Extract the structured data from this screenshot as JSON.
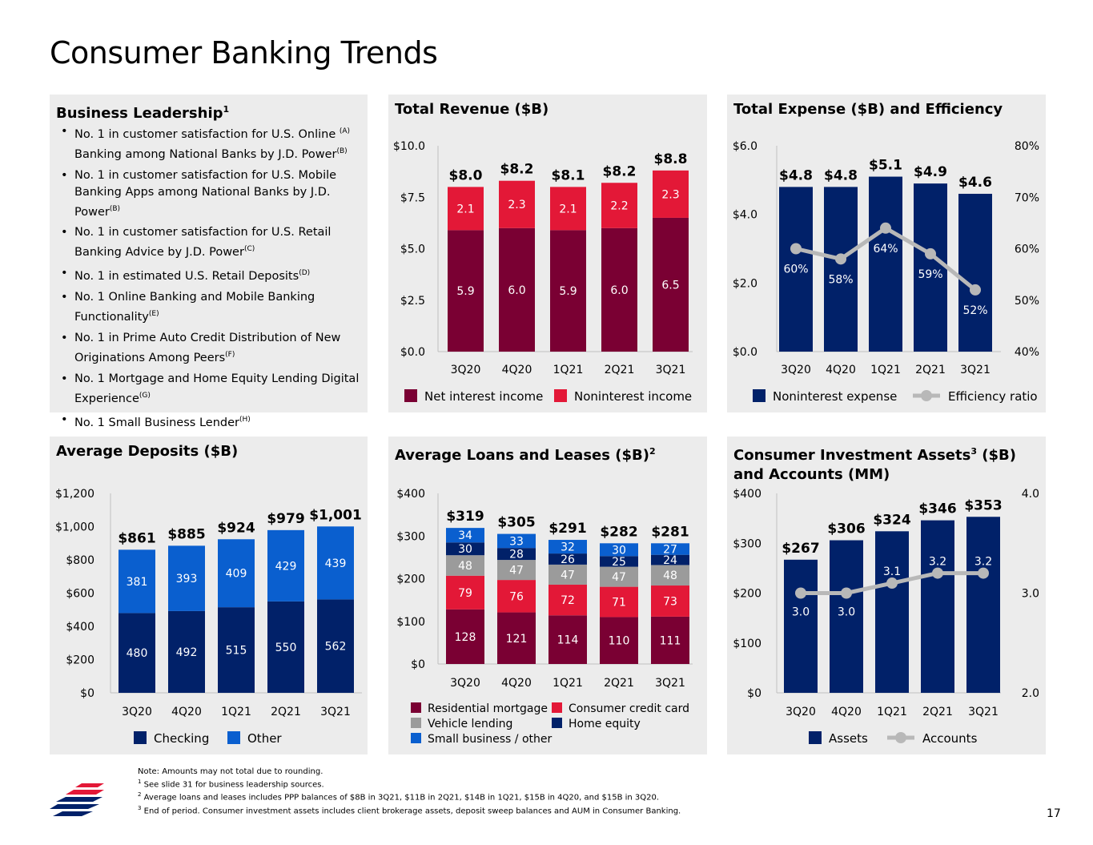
{
  "page": {
    "title": "Consumer Banking Trends",
    "page_number": "17",
    "colors": {
      "maroon": "#7a0033",
      "red": "#e31837",
      "navy": "#012169",
      "blue": "#0a5fcf",
      "gray": "#9b9b9b",
      "line_gray": "#b8b8b8",
      "panel_bg": "#ececec"
    }
  },
  "leadership": {
    "title": "Business Leadership",
    "title_sup": "1",
    "items": [
      {
        "text": "No. 1 in customer satisfaction for U.S. Online ",
        "sup1": "(A)",
        "text2": "Banking among National Banks by J.D. Power",
        "sup2": "(B)"
      },
      {
        "text": "No. 1 in customer satisfaction for U.S. Mobile Banking Apps among National Banks by J.D. Power",
        "sup1": "(B)",
        "text2": "",
        "sup2": ""
      },
      {
        "text": "No. 1 in customer satisfaction for U.S. Retail Banking Advice by J.D. Power",
        "sup1": "(C)",
        "text2": "",
        "sup2": ""
      },
      {
        "text": "No. 1 in estimated U.S. Retail Deposits",
        "sup1": "(D)",
        "text2": "",
        "sup2": ""
      },
      {
        "text": "No. 1 Online Banking and Mobile Banking Functionality",
        "sup1": "(E)",
        "text2": "",
        "sup2": ""
      },
      {
        "text": "No. 1 in Prime Auto Credit Distribution of New Originations Among Peers",
        "sup1": "(F)",
        "text2": "",
        "sup2": ""
      },
      {
        "text": "No. 1 Mortgage and Home Equity Lending Digital Experience",
        "sup1": "(G)",
        "text2": "",
        "sup2": ""
      },
      {
        "text": "No. 1 Small Business Lender",
        "sup1": "(H)",
        "text2": "",
        "sup2": ""
      }
    ]
  },
  "chart_data": [
    {
      "id": "revenue",
      "type": "bar",
      "stacked": true,
      "title": "Total Revenue ($B)",
      "title_sup": "",
      "title2": "",
      "categories": [
        "3Q20",
        "4Q20",
        "1Q21",
        "2Q21",
        "3Q21"
      ],
      "series": [
        {
          "name": "Net interest income",
          "color": "#7a0033",
          "values": [
            5.9,
            6.0,
            5.9,
            6.0,
            6.5
          ],
          "labels": [
            "5.9",
            "6.0",
            "5.9",
            "6.0",
            "6.5"
          ]
        },
        {
          "name": "Noninterest income",
          "color": "#e31837",
          "values": [
            2.1,
            2.3,
            2.1,
            2.2,
            2.3
          ],
          "labels": [
            "2.1",
            "2.3",
            "2.1",
            "2.2",
            "2.3"
          ]
        }
      ],
      "totals": [
        "$8.0",
        "$8.2",
        "$8.1",
        "$8.2",
        "$8.8"
      ],
      "ylim": [
        0,
        10
      ],
      "yticks": [
        "$0.0",
        "$2.5",
        "$5.0",
        "$7.5",
        "$10.0"
      ],
      "grid": false,
      "legend_position": "bottom"
    },
    {
      "id": "expense",
      "type": "bar",
      "stacked": false,
      "title": "Total Expense ($B) and Efficiency",
      "title_sup": "",
      "title2": "",
      "categories": [
        "3Q20",
        "4Q20",
        "1Q21",
        "2Q21",
        "3Q21"
      ],
      "series": [
        {
          "name": "Noninterest expense",
          "color": "#012169",
          "values": [
            4.8,
            4.8,
            5.1,
            4.9,
            4.6
          ],
          "labels": [
            "$4.8",
            "$4.8",
            "$5.1",
            "$4.9",
            "$4.6"
          ]
        }
      ],
      "line": {
        "name": "Efficiency ratio",
        "color": "#b8b8b8",
        "values": [
          60,
          58,
          64,
          59,
          52
        ],
        "labels": [
          "60%",
          "58%",
          "64%",
          "59%",
          "52%"
        ],
        "axis": "right"
      },
      "ylim": [
        0,
        6
      ],
      "yticks": [
        "$0.0",
        "$2.0",
        "$4.0",
        "$6.0"
      ],
      "y2lim": [
        40,
        80
      ],
      "y2ticks": [
        "40%",
        "50%",
        "60%",
        "70%",
        "80%"
      ],
      "grid": false,
      "legend_position": "bottom"
    },
    {
      "id": "deposits",
      "type": "bar",
      "stacked": true,
      "title": "Average Deposits ($B)",
      "title_sup": "",
      "title2": "",
      "categories": [
        "3Q20",
        "4Q20",
        "1Q21",
        "2Q21",
        "3Q21"
      ],
      "series": [
        {
          "name": "Checking",
          "color": "#012169",
          "values": [
            480,
            492,
            515,
            550,
            562
          ],
          "labels": [
            "480",
            "492",
            "515",
            "550",
            "562"
          ]
        },
        {
          "name": "Other",
          "color": "#0a5fcf",
          "values": [
            381,
            393,
            409,
            429,
            439
          ],
          "labels": [
            "381",
            "393",
            "409",
            "429",
            "439"
          ]
        }
      ],
      "totals": [
        "$861",
        "$885",
        "$924",
        "$979",
        "$1,001"
      ],
      "ylim": [
        0,
        1200
      ],
      "yticks": [
        "$0",
        "$200",
        "$400",
        "$600",
        "$800",
        "$1,000",
        "$1,200"
      ],
      "grid": false,
      "legend_position": "bottom"
    },
    {
      "id": "loans",
      "type": "bar",
      "stacked": true,
      "title": "Average Loans and Leases ($B)",
      "title_sup": "2",
      "title2": "",
      "categories": [
        "3Q20",
        "4Q20",
        "1Q21",
        "2Q21",
        "3Q21"
      ],
      "series": [
        {
          "name": "Residential mortgage",
          "color": "#7a0033",
          "values": [
            128,
            121,
            114,
            110,
            111
          ],
          "labels": [
            "128",
            "121",
            "114",
            "110",
            "111"
          ]
        },
        {
          "name": "Consumer credit card",
          "color": "#e31837",
          "values": [
            79,
            76,
            72,
            71,
            73
          ],
          "labels": [
            "79",
            "76",
            "72",
            "71",
            "73"
          ]
        },
        {
          "name": "Vehicle lending",
          "color": "#9b9b9b",
          "values": [
            48,
            47,
            47,
            47,
            48
          ],
          "labels": [
            "48",
            "47",
            "47",
            "47",
            "48"
          ]
        },
        {
          "name": "Home equity",
          "color": "#012169",
          "values": [
            30,
            28,
            26,
            25,
            24
          ],
          "labels": [
            "30",
            "28",
            "26",
            "25",
            "24"
          ]
        },
        {
          "name": "Small business / other",
          "color": "#0a5fcf",
          "values": [
            34,
            33,
            32,
            30,
            27
          ],
          "labels": [
            "34",
            "33",
            "32",
            "30",
            "27"
          ]
        }
      ],
      "totals": [
        "$319",
        "$305",
        "$291",
        "$282",
        "$281"
      ],
      "ylim": [
        0,
        400
      ],
      "yticks": [
        "$0",
        "$100",
        "$200",
        "$300",
        "$400"
      ],
      "grid": false,
      "legend_position": "bottom"
    },
    {
      "id": "investments",
      "type": "bar",
      "stacked": false,
      "title": "Consumer Investment Assets",
      "title_sup": "3",
      "title2": " ($B) and Accounts (MM)",
      "categories": [
        "3Q20",
        "4Q20",
        "1Q21",
        "2Q21",
        "3Q21"
      ],
      "series": [
        {
          "name": "Assets",
          "color": "#012169",
          "values": [
            267,
            306,
            324,
            346,
            353
          ],
          "labels": [
            "$267",
            "$306",
            "$324",
            "$346",
            "$353"
          ]
        }
      ],
      "line": {
        "name": "Accounts",
        "color": "#b8b8b8",
        "values": [
          3.0,
          3.0,
          3.1,
          3.2,
          3.2
        ],
        "labels": [
          "3.0",
          "3.0",
          "3.1",
          "3.2",
          "3.2"
        ],
        "axis": "right"
      },
      "ylim": [
        0,
        400
      ],
      "yticks": [
        "$0",
        "$100",
        "$200",
        "$300",
        "$400"
      ],
      "y2lim": [
        2,
        4
      ],
      "y2ticks": [
        "2.0",
        "3.0",
        "4.0"
      ],
      "grid": false,
      "legend_position": "bottom"
    }
  ],
  "notes": [
    {
      "sup": "",
      "text": "Note: Amounts may not total due to rounding."
    },
    {
      "sup": "1",
      "text": " See slide 31 for business leadership sources."
    },
    {
      "sup": "2",
      "text": " Average loans and leases includes PPP balances of $8B in 3Q21, $11B in 2Q21, $14B in 1Q21, $15B in 4Q20, and $15B in 3Q20."
    },
    {
      "sup": "3",
      "text": " End of period. Consumer investment assets includes client brokerage assets, deposit sweep balances and AUM in Consumer Banking."
    }
  ]
}
